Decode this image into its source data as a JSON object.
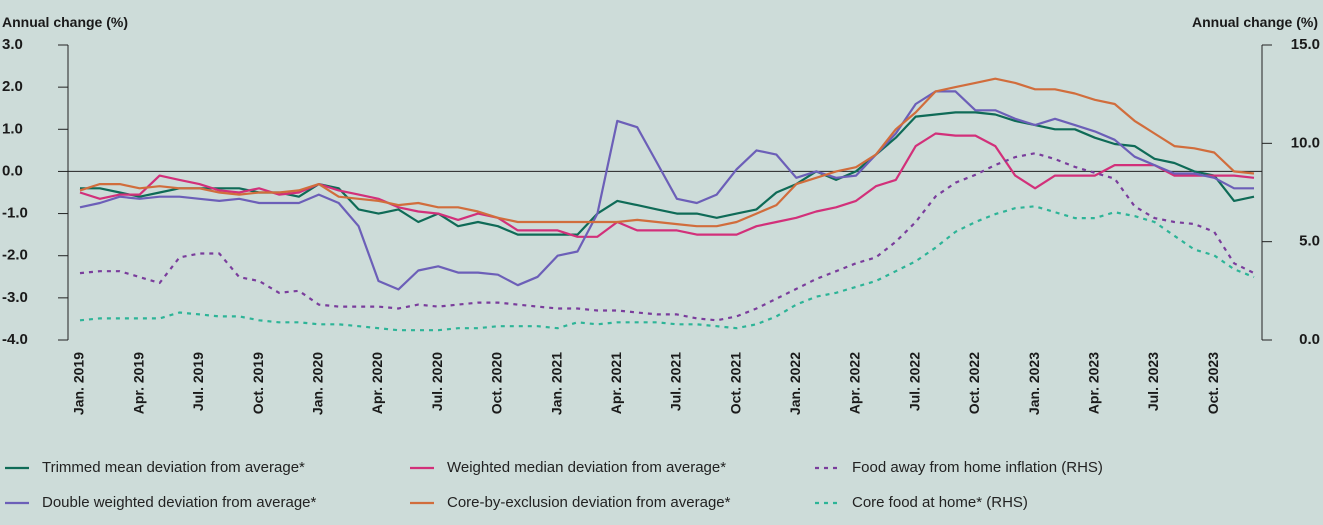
{
  "chart_data": {
    "type": "line",
    "y_label": "Annual change (%)",
    "y2_label": "Annual change (%)",
    "categories": [
      "Jan. 2019",
      null,
      null,
      "Apr. 2019",
      null,
      null,
      "Jul. 2019",
      null,
      null,
      "Oct. 2019",
      null,
      null,
      "Jan. 2020",
      null,
      null,
      "Apr. 2020",
      null,
      null,
      "Jul. 2020",
      null,
      null,
      "Oct. 2020",
      null,
      null,
      "Jan. 2021",
      null,
      null,
      "Apr. 2021",
      null,
      null,
      "Jul. 2021",
      null,
      null,
      "Oct. 2021",
      null,
      null,
      "Jan. 2022",
      null,
      null,
      "Apr. 2022",
      null,
      null,
      "Jul. 2022",
      null,
      null,
      "Oct. 2022",
      null,
      null,
      "Jan. 2023",
      null,
      null,
      "Apr. 2023",
      null,
      null,
      "Jul. 2023",
      null,
      null,
      "Oct. 2023",
      null,
      null
    ],
    "ylim": [
      -4,
      3
    ],
    "yticks": [
      {
        "value": 3,
        "label": "3.0"
      },
      {
        "value": 2,
        "label": "2.0"
      },
      {
        "value": 1,
        "label": "1.0"
      },
      {
        "value": 0,
        "label": "0.0"
      },
      {
        "value": -1,
        "label": "-1.0"
      },
      {
        "value": -2,
        "label": "-2.0"
      },
      {
        "value": -3,
        "label": "-3.0"
      },
      {
        "value": -4,
        "label": "-4.0"
      }
    ],
    "y2lim": [
      0,
      15
    ],
    "y2ticks": [
      {
        "value": 15,
        "label": "15.0"
      },
      {
        "value": 10,
        "label": "10.0"
      },
      {
        "value": 5,
        "label": "5.0"
      },
      {
        "value": 0,
        "label": "0.0"
      }
    ],
    "series": [
      {
        "name": "Trimmed mean deviation from average*",
        "color": "#0f6b57",
        "style": "solid",
        "values": [
          -0.4,
          -0.4,
          -0.5,
          -0.6,
          -0.5,
          -0.4,
          -0.4,
          -0.4,
          -0.4,
          -0.5,
          -0.5,
          -0.6,
          -0.3,
          -0.4,
          -0.9,
          -1.0,
          -0.9,
          -1.2,
          -1.0,
          -1.3,
          -1.2,
          -1.3,
          -1.5,
          -1.5,
          -1.5,
          -1.5,
          -1.0,
          -0.7,
          -0.8,
          -0.9,
          -1.0,
          -1.0,
          -1.1,
          -1.0,
          -0.9,
          -0.5,
          -0.3,
          0.0,
          -0.2,
          0.0,
          0.4,
          0.8,
          1.3,
          1.35,
          1.4,
          1.4,
          1.35,
          1.2,
          1.1,
          1.0,
          1.0,
          0.8,
          0.65,
          0.6,
          0.3,
          0.2,
          0.0,
          -0.1,
          -0.7,
          -0.6
        ]
      },
      {
        "name": "Weighted median deviation from average*",
        "color": "#d2307a",
        "style": "solid",
        "values": [
          -0.5,
          -0.65,
          -0.55,
          -0.55,
          -0.1,
          -0.2,
          -0.3,
          -0.45,
          -0.5,
          -0.4,
          -0.55,
          -0.5,
          -0.3,
          -0.45,
          -0.55,
          -0.65,
          -0.85,
          -0.95,
          -1.0,
          -1.15,
          -1.0,
          -1.1,
          -1.4,
          -1.4,
          -1.4,
          -1.55,
          -1.55,
          -1.2,
          -1.4,
          -1.4,
          -1.4,
          -1.5,
          -1.5,
          -1.5,
          -1.3,
          -1.2,
          -1.1,
          -0.95,
          -0.85,
          -0.7,
          -0.35,
          -0.2,
          0.6,
          0.9,
          0.85,
          0.85,
          0.6,
          -0.1,
          -0.4,
          -0.1,
          -0.1,
          -0.1,
          0.15,
          0.15,
          0.15,
          -0.1,
          -0.1,
          -0.1,
          -0.1,
          -0.15
        ]
      },
      {
        "name": "Food away from home inflation (RHS)",
        "color": "#7a3d9c",
        "style": "dashed",
        "axis": "y2",
        "values": [
          3.4,
          3.5,
          3.5,
          3.2,
          2.9,
          4.2,
          4.4,
          4.4,
          3.2,
          3.0,
          2.4,
          2.5,
          1.8,
          1.7,
          1.7,
          1.7,
          1.6,
          1.8,
          1.7,
          1.8,
          1.9,
          1.9,
          1.8,
          1.7,
          1.6,
          1.6,
          1.5,
          1.5,
          1.4,
          1.3,
          1.3,
          1.1,
          1.0,
          1.2,
          1.6,
          2.1,
          2.6,
          3.1,
          3.5,
          3.9,
          4.2,
          5.0,
          6.0,
          7.3,
          8.0,
          8.4,
          8.9,
          9.3,
          9.5,
          9.2,
          8.8,
          8.5,
          8.2,
          6.8,
          6.2,
          6.0,
          5.9,
          5.5,
          3.9,
          3.4
        ]
      },
      {
        "name": "Double weighted deviation from average*",
        "color": "#6c5fb8",
        "style": "solid",
        "values": [
          -0.85,
          -0.75,
          -0.6,
          -0.65,
          -0.6,
          -0.6,
          -0.65,
          -0.7,
          -0.65,
          -0.75,
          -0.75,
          -0.75,
          -0.55,
          -0.75,
          -1.3,
          -2.6,
          -2.8,
          -2.35,
          -2.25,
          -2.4,
          -2.4,
          -2.45,
          -2.7,
          -2.5,
          -2.0,
          -1.9,
          -1.0,
          1.2,
          1.05,
          0.2,
          -0.65,
          -0.75,
          -0.55,
          0.05,
          0.5,
          0.4,
          -0.15,
          0.0,
          -0.15,
          -0.1,
          0.4,
          0.9,
          1.6,
          1.9,
          1.9,
          1.45,
          1.45,
          1.25,
          1.1,
          1.25,
          1.1,
          0.95,
          0.75,
          0.35,
          0.15,
          -0.05,
          -0.05,
          -0.15,
          -0.4,
          -0.4
        ]
      },
      {
        "name": "Core-by-exclusion deviation from average*",
        "color": "#d16d3c",
        "style": "solid",
        "values": [
          -0.45,
          -0.3,
          -0.3,
          -0.4,
          -0.35,
          -0.4,
          -0.4,
          -0.5,
          -0.55,
          -0.5,
          -0.5,
          -0.45,
          -0.3,
          -0.6,
          -0.65,
          -0.7,
          -0.8,
          -0.75,
          -0.85,
          -0.85,
          -0.95,
          -1.1,
          -1.2,
          -1.2,
          -1.2,
          -1.2,
          -1.2,
          -1.2,
          -1.15,
          -1.2,
          -1.25,
          -1.3,
          -1.3,
          -1.2,
          -1.0,
          -0.8,
          -0.3,
          -0.15,
          0.0,
          0.1,
          0.4,
          1.0,
          1.4,
          1.9,
          2.0,
          2.1,
          2.2,
          2.1,
          1.95,
          1.95,
          1.85,
          1.7,
          1.6,
          1.2,
          0.9,
          0.6,
          0.55,
          0.45,
          0.0,
          -0.05
        ]
      },
      {
        "name": "Core food at home* (RHS)",
        "color": "#2db497",
        "style": "dashed",
        "axis": "y2",
        "values": [
          1.0,
          1.1,
          1.1,
          1.1,
          1.1,
          1.4,
          1.3,
          1.2,
          1.2,
          1.0,
          0.9,
          0.9,
          0.8,
          0.8,
          0.7,
          0.6,
          0.5,
          0.5,
          0.5,
          0.6,
          0.6,
          0.7,
          0.7,
          0.7,
          0.6,
          0.9,
          0.8,
          0.9,
          0.9,
          0.9,
          0.8,
          0.8,
          0.7,
          0.6,
          0.8,
          1.2,
          1.8,
          2.2,
          2.4,
          2.7,
          3.0,
          3.5,
          4.0,
          4.7,
          5.5,
          6.0,
          6.4,
          6.7,
          6.8,
          6.5,
          6.2,
          6.2,
          6.5,
          6.3,
          6.0,
          5.3,
          4.6,
          4.3,
          3.6,
          3.2
        ]
      }
    ]
  }
}
